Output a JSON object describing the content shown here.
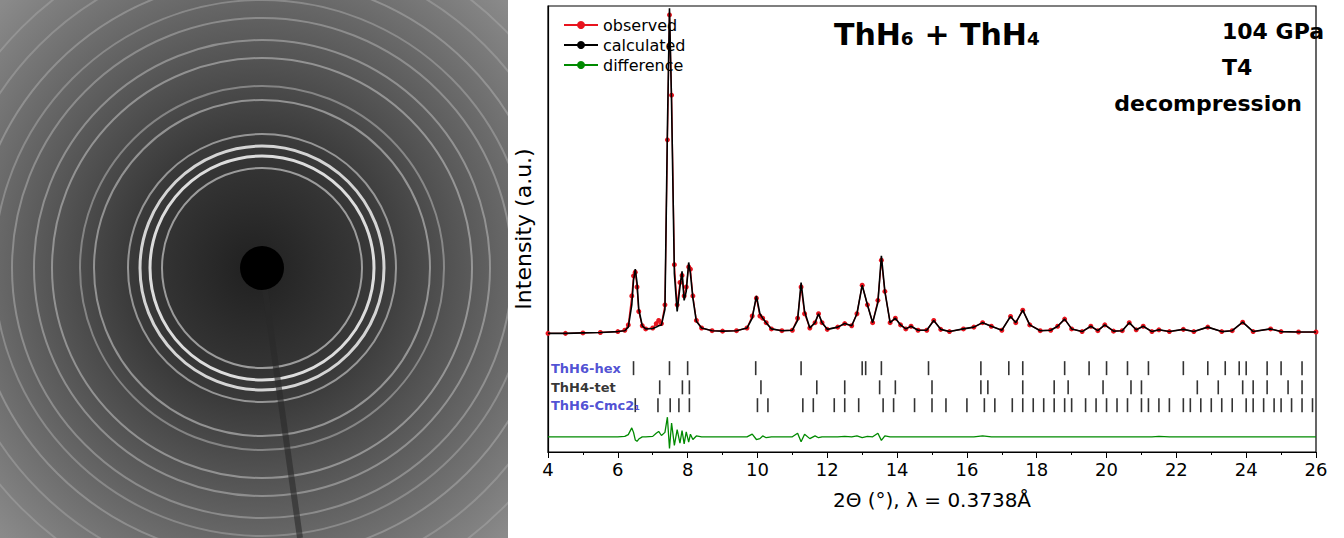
{
  "chart_data": {
    "type": "line",
    "title": "ThH₆ + ThH₄",
    "annotations": [
      "104 GPa",
      "T4",
      "decompression"
    ],
    "x_label": "2Θ (°), λ = 0.3738Å",
    "y_label": "Intensity (a.u.)",
    "xlim": [
      4,
      26
    ],
    "xticks": [
      4,
      6,
      8,
      10,
      12,
      14,
      16,
      18,
      20,
      22,
      24,
      26
    ],
    "ylim": [
      0,
      100
    ],
    "yticks": [],
    "tick_labels": "x",
    "grid": false,
    "legend": "upper left",
    "x": [
      4,
      4.5,
      5,
      5.5,
      6,
      6.2,
      6.3,
      6.4,
      6.45,
      6.5,
      6.55,
      6.6,
      6.7,
      6.8,
      7.0,
      7.1,
      7.17,
      7.25,
      7.35,
      7.42,
      7.48,
      7.54,
      7.62,
      7.7,
      7.78,
      7.84,
      7.9,
      7.96,
      8.03,
      8.08,
      8.15,
      8.25,
      8.4,
      8.7,
      9.0,
      9.4,
      9.7,
      9.85,
      9.97,
      10.07,
      10.15,
      10.25,
      10.4,
      10.7,
      11.0,
      11.15,
      11.25,
      11.35,
      11.5,
      11.65,
      11.75,
      11.85,
      12.0,
      12.3,
      12.5,
      12.7,
      12.85,
      13.0,
      13.15,
      13.3,
      13.45,
      13.55,
      13.65,
      13.8,
      13.95,
      14.1,
      14.25,
      14.4,
      14.6,
      14.85,
      15.05,
      15.25,
      15.5,
      15.9,
      16.2,
      16.45,
      16.7,
      17.0,
      17.25,
      17.4,
      17.6,
      17.8,
      18.1,
      18.4,
      18.6,
      18.8,
      19.0,
      19.3,
      19.55,
      19.75,
      19.95,
      20.2,
      20.45,
      20.65,
      20.85,
      21.05,
      21.3,
      21.5,
      21.8,
      22.2,
      22.5,
      22.9,
      23.3,
      23.6,
      23.9,
      24.2,
      24.7,
      25.0,
      25.5,
      26.0
    ],
    "series": [
      {
        "name": "observed",
        "color": "#e8141e",
        "marker": "circle",
        "line_style": "solid",
        "values": [
          26.6,
          26.6,
          26.7,
          26.8,
          27.0,
          27.3,
          28.5,
          35,
          39.5,
          40.3,
          37,
          31.5,
          28.3,
          27.6,
          27.8,
          28.8,
          29.5,
          28.8,
          33,
          70,
          98,
          80,
          42,
          33,
          38,
          39.6,
          35,
          37,
          41.5,
          41,
          35,
          29.5,
          27.8,
          27.2,
          27.1,
          27.2,
          27.8,
          30.5,
          34.5,
          30.5,
          30,
          29,
          27.6,
          27.2,
          27.3,
          30,
          37,
          31,
          27.8,
          29,
          31,
          29,
          27.5,
          28,
          28.8,
          28.3,
          31,
          37.4,
          33,
          29,
          34,
          43,
          36,
          29,
          30,
          28.5,
          27.6,
          28.2,
          27.3,
          27.3,
          29.5,
          27.5,
          27,
          27.6,
          28,
          29,
          28.2,
          27.3,
          30.4,
          29,
          31.8,
          28.5,
          27.2,
          27.3,
          28.2,
          29.8,
          27.6,
          27,
          28.2,
          27.2,
          28.5,
          27.1,
          27.2,
          29,
          27.4,
          28.2,
          27,
          27.4,
          27,
          27.5,
          27,
          28,
          27,
          27.2,
          29.1,
          27,
          27.6,
          27,
          26.9,
          26.9
        ]
      },
      {
        "name": "calculated",
        "color": "#000000",
        "marker": "none",
        "line_style": "solid",
        "values": [
          26.6,
          26.6,
          26.7,
          26.8,
          27.0,
          27.2,
          28.0,
          33,
          38.5,
          41,
          38,
          32,
          28.3,
          27.6,
          27.7,
          28.0,
          28.3,
          28.5,
          32,
          72,
          99.5,
          78,
          40,
          31.5,
          37,
          40.5,
          34,
          36,
          42.5,
          40,
          34.5,
          29.3,
          27.8,
          27.2,
          27.1,
          27.2,
          27.8,
          30,
          35,
          31,
          30,
          29,
          27.6,
          27.2,
          27.3,
          29.5,
          38,
          31.5,
          27.8,
          29,
          31,
          29,
          27.5,
          28,
          28.8,
          28.3,
          31,
          37.4,
          33,
          29,
          33.5,
          44,
          36,
          29,
          30,
          28.5,
          27.6,
          28.2,
          27.3,
          27.3,
          29.5,
          27.5,
          27,
          27.6,
          28,
          29,
          28.2,
          27.3,
          30.4,
          29,
          31.8,
          28.5,
          27.2,
          27.3,
          28.2,
          29.8,
          27.6,
          27,
          28.2,
          27.2,
          28.5,
          27.1,
          27.2,
          29,
          27.4,
          28.2,
          27,
          27.4,
          27,
          27.5,
          27,
          28,
          27,
          27.2,
          29.1,
          27,
          27.6,
          27,
          26.9,
          26.9
        ]
      },
      {
        "name": "difference",
        "color": "#008a00",
        "marker": "none",
        "line_style": "solid",
        "values": [
          3.4,
          3.4,
          3.4,
          3.4,
          3.4,
          3.5,
          3.9,
          5.4,
          4.4,
          2.7,
          2.4,
          2.9,
          3.4,
          3.4,
          3.5,
          4.2,
          4.6,
          3.7,
          4.4,
          7.8,
          0.8,
          6.5,
          1.5,
          5.0,
          2.0,
          4.8,
          1.8,
          4.5,
          2.2,
          4.0,
          2.8,
          3.6,
          3.4,
          3.4,
          3.4,
          3.4,
          3.4,
          4.0,
          2.8,
          3.0,
          3.6,
          3.2,
          3.4,
          3.4,
          3.4,
          4.2,
          2.3,
          4.0,
          3.0,
          3.6,
          3.2,
          3.4,
          3.4,
          3.4,
          3.5,
          3.4,
          3.6,
          3.2,
          3.5,
          3.4,
          4.2,
          2.6,
          3.6,
          3.4,
          3.4,
          3.4,
          3.4,
          3.4,
          3.4,
          3.4,
          3.4,
          3.4,
          3.4,
          3.4,
          3.4,
          3.6,
          3.4,
          3.4,
          3.4,
          3.4,
          3.4,
          3.4,
          3.4,
          3.4,
          3.4,
          3.4,
          3.4,
          3.4,
          3.4,
          3.4,
          3.4,
          3.4,
          3.4,
          3.4,
          3.4,
          3.4,
          3.4,
          3.5,
          3.4,
          3.4,
          3.4,
          3.4,
          3.4,
          3.4,
          3.4,
          3.4,
          3.4,
          3.4,
          3.4,
          3.4
        ]
      }
    ],
    "phases": [
      {
        "name": "ThH6-hex",
        "color": "#2323c8",
        "y": 18.8,
        "x": [
          6.45,
          7.48,
          8.0,
          9.95,
          11.25,
          13.0,
          13.1,
          13.55,
          14.9,
          16.4,
          17.2,
          17.6,
          18.8,
          19.5,
          20.0,
          20.6,
          21.2,
          22.2,
          22.9,
          23.4,
          23.8,
          24.0,
          24.6,
          25.0,
          25.6
        ]
      },
      {
        "name": "ThH4-tet",
        "color": "#000000",
        "y": 14.5,
        "x": [
          7.2,
          7.85,
          8.05,
          10.1,
          11.7,
          12.5,
          13.5,
          13.95,
          15.0,
          16.4,
          16.6,
          17.6,
          18.5,
          18.9,
          19.9,
          20.7,
          21.0,
          22.6,
          23.2,
          23.9,
          24.2,
          24.6,
          25.2,
          25.6
        ]
      },
      {
        "name": "ThH6-Cmc2₁",
        "color": "#2323c8",
        "y": 10.5,
        "x": [
          6.5,
          7.15,
          7.5,
          7.75,
          8.05,
          10.0,
          10.3,
          11.3,
          11.6,
          12.2,
          12.5,
          12.9,
          13.6,
          13.9,
          14.5,
          15.0,
          15.4,
          16.0,
          16.5,
          16.8,
          17.3,
          17.6,
          17.9,
          18.2,
          18.5,
          18.8,
          19.0,
          19.4,
          19.7,
          20.0,
          20.3,
          20.6,
          21.0,
          21.2,
          21.5,
          21.8,
          22.2,
          22.4,
          22.7,
          23.0,
          23.3,
          23.6,
          24.0,
          24.2,
          24.5,
          24.8,
          25.0,
          25.3,
          25.6,
          25.9
        ]
      }
    ]
  }
}
